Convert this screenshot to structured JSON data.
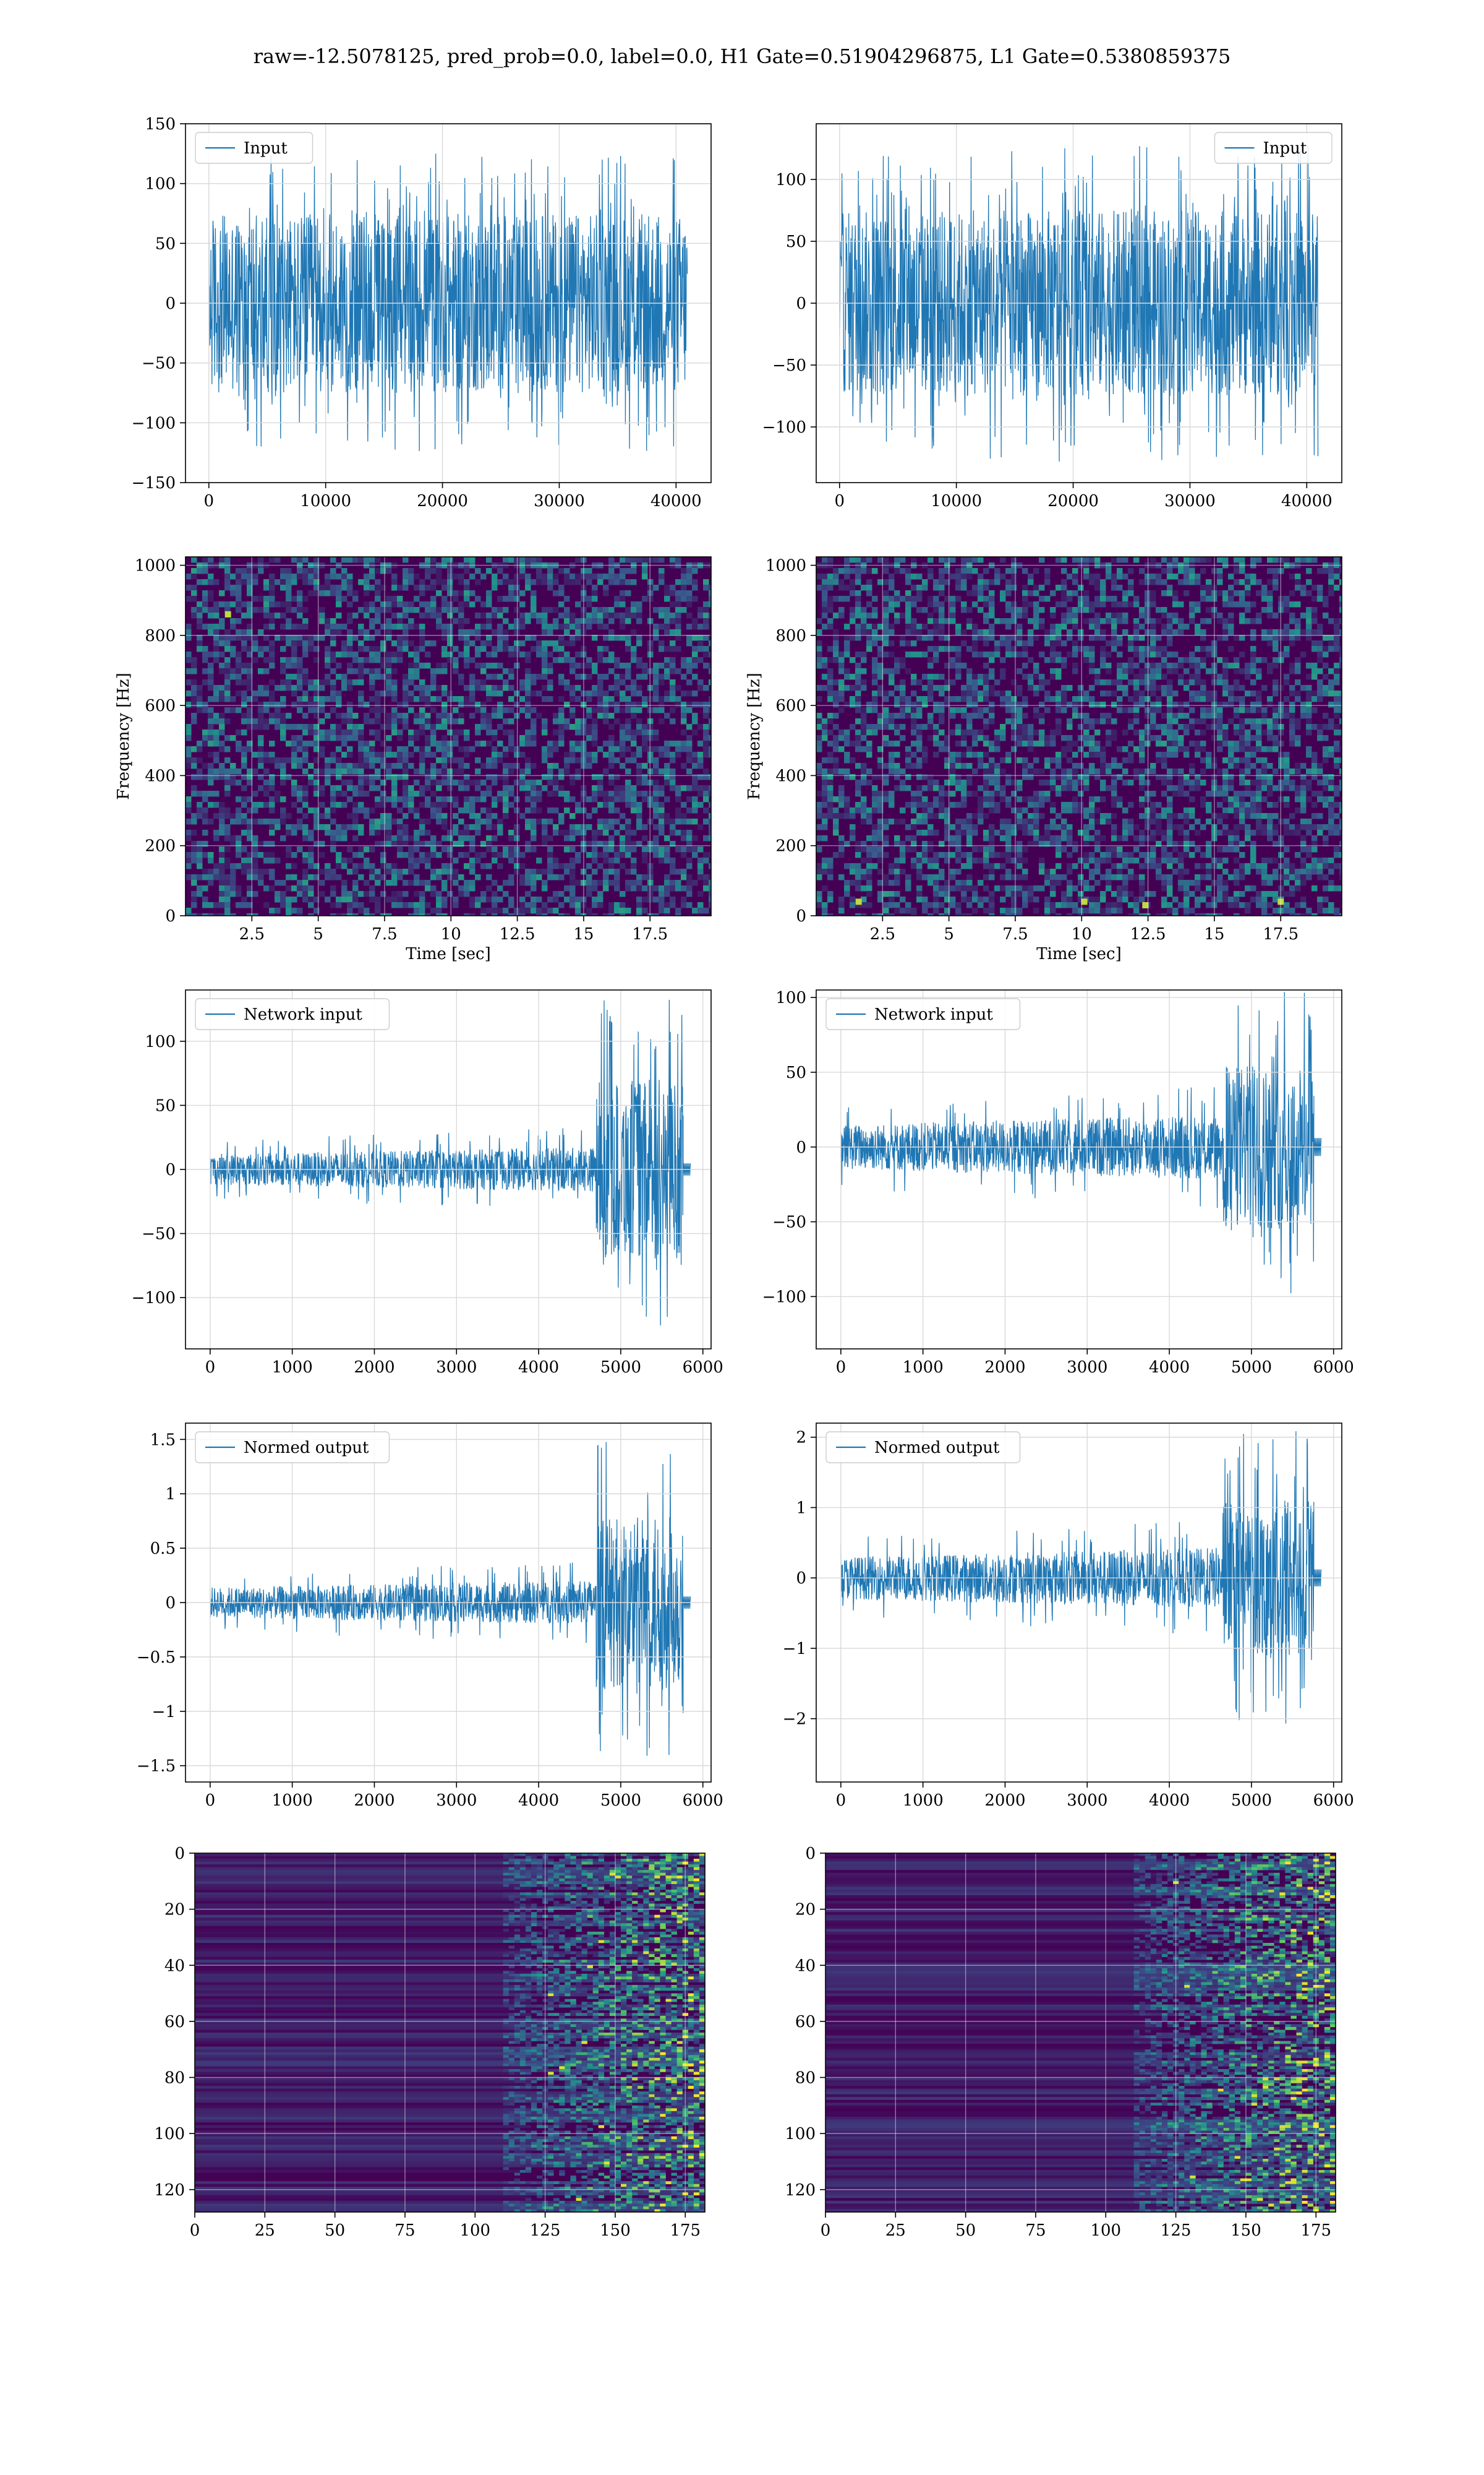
{
  "figure": {
    "title": "raw=-12.5078125, pred_prob=0.0, label=0.0, H1 Gate=0.51904296875, L1 Gate=0.5380859375"
  },
  "colors": {
    "line": "#1f77b4",
    "grid": "#d9d9d9",
    "viridis_low": "#440154",
    "viridis_mid": "#21918c",
    "viridis_high": "#fde725"
  },
  "chart_data": [
    {
      "id": "input_left",
      "type": "line",
      "style": "noise",
      "legend": "Input",
      "legend_loc": "upper-left",
      "xlim": [
        -2000,
        43000
      ],
      "ylim": [
        -150,
        150
      ],
      "xticks": [
        0,
        10000,
        20000,
        30000,
        40000
      ],
      "yticks": [
        -150,
        -100,
        -50,
        0,
        50,
        100,
        150
      ],
      "signal": {
        "x_end": 40960,
        "core": 75,
        "peak": 125
      },
      "xlabel": "",
      "ylabel": "",
      "grid": true
    },
    {
      "id": "input_right",
      "type": "line",
      "style": "noise",
      "legend": "Input",
      "legend_loc": "upper-right",
      "xlim": [
        -2000,
        43000
      ],
      "ylim": [
        -145,
        145
      ],
      "xticks": [
        0,
        10000,
        20000,
        30000,
        40000
      ],
      "yticks": [
        -100,
        -50,
        0,
        50,
        100
      ],
      "signal": {
        "x_end": 40960,
        "core": 75,
        "peak": 128
      },
      "xlabel": "",
      "ylabel": "",
      "grid": true
    },
    {
      "id": "spec_left",
      "type": "heatmap",
      "style": "spectrogram",
      "xlim": [
        0,
        19.8
      ],
      "ylim": [
        0,
        1024
      ],
      "xticks": [
        2.5,
        5.0,
        7.5,
        10.0,
        12.5,
        15.0,
        17.5
      ],
      "yticks": [
        0,
        200,
        400,
        600,
        800,
        1000
      ],
      "xlabel": "Time [sec]",
      "ylabel": "Frequency [Hz]",
      "grid": true,
      "hot_spots": [
        {
          "t": 1.6,
          "f": 860
        }
      ]
    },
    {
      "id": "spec_right",
      "type": "heatmap",
      "style": "spectrogram",
      "xlim": [
        0,
        19.8
      ],
      "ylim": [
        0,
        1024
      ],
      "xticks": [
        2.5,
        5.0,
        7.5,
        10.0,
        12.5,
        15.0,
        17.5
      ],
      "yticks": [
        0,
        200,
        400,
        600,
        800,
        1000
      ],
      "xlabel": "Time [sec]",
      "ylabel": "Frequency [Hz]",
      "grid": true,
      "hot_spots": [
        {
          "t": 1.6,
          "f": 40
        },
        {
          "t": 10.1,
          "f": 40
        },
        {
          "t": 12.4,
          "f": 30
        },
        {
          "t": 17.5,
          "f": 40
        }
      ]
    },
    {
      "id": "netin_left",
      "type": "line",
      "style": "chirp",
      "legend": "Network input",
      "legend_loc": "upper-left",
      "xlim": [
        -300,
        6100
      ],
      "ylim": [
        -140,
        140
      ],
      "xticks": [
        0,
        1000,
        2000,
        3000,
        4000,
        5000,
        6000
      ],
      "yticks": [
        -100,
        -50,
        0,
        50,
        100
      ],
      "signal": {
        "x_end": 5760,
        "burst_start": 4700,
        "base": 12,
        "burst": 70,
        "peak": 125
      },
      "xlabel": "",
      "ylabel": "",
      "grid": true
    },
    {
      "id": "netin_right",
      "type": "line",
      "style": "chirp",
      "legend": "Network input",
      "legend_loc": "upper-left",
      "xlim": [
        -300,
        6100
      ],
      "ylim": [
        -135,
        105
      ],
      "xticks": [
        0,
        1000,
        2000,
        3000,
        4000,
        5000,
        6000
      ],
      "yticks": [
        -100,
        -50,
        0,
        50,
        100
      ],
      "signal": {
        "x_end": 5760,
        "burst_start": 4650,
        "base": 15,
        "burst": 55,
        "peak": 97
      },
      "xlabel": "",
      "ylabel": "",
      "grid": true
    },
    {
      "id": "normed_left",
      "type": "line",
      "style": "chirp",
      "legend": "Normed output",
      "legend_loc": "upper-left",
      "xlim": [
        -300,
        6100
      ],
      "ylim": [
        -1.65,
        1.65
      ],
      "xticks": [
        0,
        1000,
        2000,
        3000,
        4000,
        5000,
        6000
      ],
      "yticks": [
        -1.5,
        -1.0,
        -0.5,
        0.0,
        0.5,
        1.0,
        1.5
      ],
      "signal": {
        "x_end": 5760,
        "burst_start": 4700,
        "base": 0.14,
        "burst": 0.8,
        "peak": 1.5
      },
      "xlabel": "",
      "ylabel": "",
      "grid": true
    },
    {
      "id": "normed_right",
      "type": "line",
      "style": "chirp",
      "legend": "Normed output",
      "legend_loc": "upper-left",
      "xlim": [
        -300,
        6100
      ],
      "ylim": [
        -2.9,
        2.2
      ],
      "xticks": [
        0,
        1000,
        2000,
        3000,
        4000,
        5000,
        6000
      ],
      "yticks": [
        -2,
        -1,
        0,
        1,
        2
      ],
      "signal": {
        "x_end": 5760,
        "burst_start": 4650,
        "base": 0.3,
        "burst": 1.1,
        "peak": 2.05
      },
      "xlabel": "",
      "ylabel": "",
      "grid": true
    },
    {
      "id": "feat_left",
      "type": "heatmap",
      "style": "features",
      "xlim": [
        0,
        182
      ],
      "ylim": [
        128,
        0
      ],
      "xticks": [
        0,
        25,
        50,
        75,
        100,
        125,
        150,
        175
      ],
      "yticks": [
        0,
        20,
        40,
        60,
        80,
        100,
        120
      ],
      "xlabel": "",
      "ylabel": "",
      "grid": true
    },
    {
      "id": "feat_right",
      "type": "heatmap",
      "style": "features",
      "xlim": [
        0,
        182
      ],
      "ylim": [
        128,
        0
      ],
      "xticks": [
        0,
        25,
        50,
        75,
        100,
        125,
        150,
        175
      ],
      "yticks": [
        0,
        20,
        40,
        60,
        80,
        100,
        120
      ],
      "xlabel": "",
      "ylabel": "",
      "grid": true
    }
  ]
}
